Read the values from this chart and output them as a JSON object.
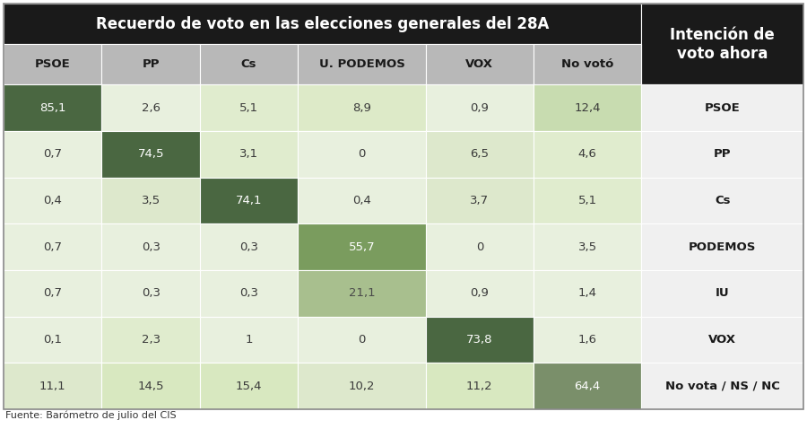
{
  "title": "Recuerdo de voto en las elecciones generales del 28A",
  "subtitle_right": "Intención de\nvoto ahora",
  "col_headers": [
    "PSOE",
    "PP",
    "Cs",
    "U. PODEMOS",
    "VOX",
    "No votó"
  ],
  "row_labels": [
    "PSOE",
    "PP",
    "Cs",
    "PODEMOS",
    "IU",
    "VOX",
    "No vota / NS / NC"
  ],
  "data": [
    [
      85.1,
      2.6,
      5.1,
      8.9,
      0.9,
      12.4
    ],
    [
      0.7,
      74.5,
      3.1,
      0,
      6.5,
      4.6
    ],
    [
      0.4,
      3.5,
      74.1,
      0.4,
      3.7,
      5.1
    ],
    [
      0.7,
      0.3,
      0.3,
      55.7,
      0,
      3.5
    ],
    [
      0.7,
      0.3,
      0.3,
      21.1,
      0.9,
      1.4
    ],
    [
      0.1,
      2.3,
      1,
      0,
      73.8,
      1.6
    ],
    [
      11.1,
      14.5,
      15.4,
      10.2,
      11.2,
      64.4
    ]
  ],
  "cell_colors": [
    [
      "#4a6741",
      "#e8f0de",
      "#e0ecce",
      "#ddeac8",
      "#e8f0de",
      "#c8dcb0"
    ],
    [
      "#e8f0de",
      "#4a6741",
      "#e0ecce",
      "#e8f0de",
      "#dde8cc",
      "#e0ecce"
    ],
    [
      "#e8f0de",
      "#dde8cc",
      "#4a6741",
      "#e8f0de",
      "#dde8cc",
      "#e0ecce"
    ],
    [
      "#e8f0de",
      "#e8f0de",
      "#e8f0de",
      "#7a9c5e",
      "#e8f0de",
      "#e8f0de"
    ],
    [
      "#e8f0de",
      "#e8f0de",
      "#e8f0de",
      "#a8bf8e",
      "#e8f0de",
      "#e8f0de"
    ],
    [
      "#e8f0de",
      "#e0ecce",
      "#e8f0de",
      "#e8f0de",
      "#4a6741",
      "#e8f0de"
    ],
    [
      "#dde8cc",
      "#d8e8c0",
      "#d8e8c0",
      "#dde8cc",
      "#d8e8c0",
      "#7a8f6a"
    ]
  ],
  "text_colors": [
    [
      "#ffffff",
      "#3a3a3a",
      "#3a3a3a",
      "#3a3a3a",
      "#3a3a3a",
      "#3a3a3a"
    ],
    [
      "#3a3a3a",
      "#ffffff",
      "#3a3a3a",
      "#3a3a3a",
      "#3a3a3a",
      "#3a3a3a"
    ],
    [
      "#3a3a3a",
      "#3a3a3a",
      "#ffffff",
      "#3a3a3a",
      "#3a3a3a",
      "#3a3a3a"
    ],
    [
      "#3a3a3a",
      "#3a3a3a",
      "#3a3a3a",
      "#ffffff",
      "#3a3a3a",
      "#3a3a3a"
    ],
    [
      "#3a3a3a",
      "#3a3a3a",
      "#3a3a3a",
      "#4a4a4a",
      "#3a3a3a",
      "#3a3a3a"
    ],
    [
      "#3a3a3a",
      "#3a3a3a",
      "#3a3a3a",
      "#3a3a3a",
      "#ffffff",
      "#3a3a3a"
    ],
    [
      "#3a3a3a",
      "#3a3a3a",
      "#3a3a3a",
      "#3a3a3a",
      "#3a3a3a",
      "#ffffff"
    ]
  ],
  "title_bg": "#1a1a1a",
  "title_fg": "#ffffff",
  "col_header_bg": "#b8b8b8",
  "col_header_fg": "#1a1a1a",
  "row_label_bg": "#f0f0f0",
  "row_label_fg": "#1a1a1a",
  "right_header_bg": "#1a1a1a",
  "right_header_fg": "#ffffff",
  "source_text": "Fuente: Barómetro de julio del CIS",
  "fig_bg": "#ffffff"
}
